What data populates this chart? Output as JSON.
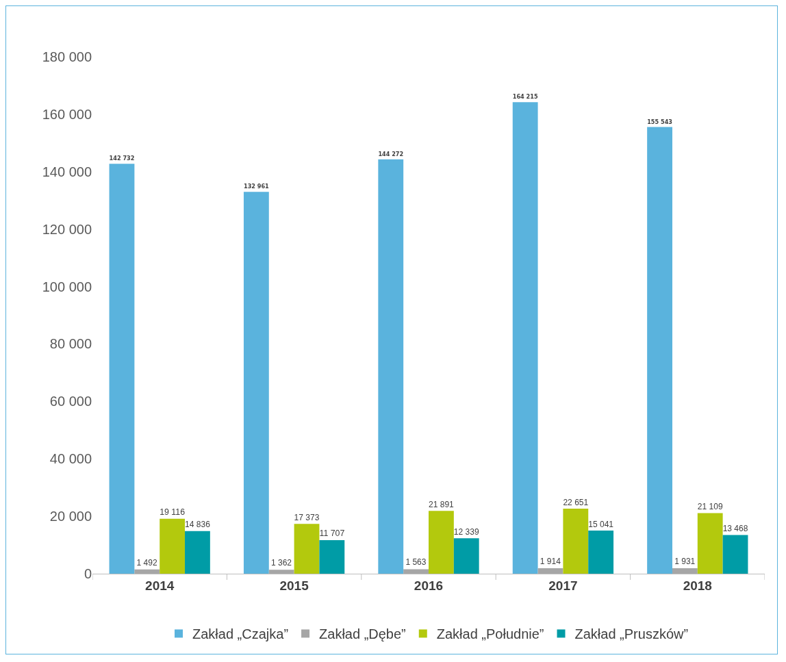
{
  "chart_data": {
    "type": "bar",
    "categories": [
      "2014",
      "2015",
      "2016",
      "2017",
      "2018"
    ],
    "series": [
      {
        "name": "Zakład „Czajka”",
        "color": "#5ab3dd",
        "values": [
          142732,
          132961,
          144272,
          164215,
          155543
        ],
        "value_labels": [
          "142 732",
          "132 961",
          "144 272",
          "164 215",
          "155 543"
        ]
      },
      {
        "name": "Zakład „Dębe”",
        "color": "#a6a6a6",
        "values": [
          1492,
          1362,
          1563,
          1914,
          1931
        ],
        "value_labels": [
          "1 492",
          "1 362",
          "1 563",
          "1 914",
          "1 931"
        ]
      },
      {
        "name": "Zakład „Południe”",
        "color": "#b3c90d",
        "values": [
          19116,
          17373,
          21891,
          22651,
          21109
        ],
        "value_labels": [
          "19 116",
          "17 373",
          "21 891",
          "22 651",
          "21 109"
        ]
      },
      {
        "name": "Zakład „Pruszków”",
        "color": "#009ca6",
        "values": [
          14836,
          11707,
          12339,
          15041,
          13468
        ],
        "value_labels": [
          "14 836",
          "11 707",
          "12 339",
          "15 041",
          "13 468"
        ]
      }
    ],
    "ylim": [
      0,
      180000
    ],
    "yticks": [
      {
        "value": 0,
        "label": "0"
      },
      {
        "value": 20000,
        "label": "20 000"
      },
      {
        "value": 40000,
        "label": "40 000"
      },
      {
        "value": 60000,
        "label": "60 000"
      },
      {
        "value": 80000,
        "label": "80 000"
      },
      {
        "value": 100000,
        "label": "100 000"
      },
      {
        "value": 120000,
        "label": "120 000"
      },
      {
        "value": 140000,
        "label": "140 000"
      },
      {
        "value": 160000,
        "label": "160 000"
      },
      {
        "value": 180000,
        "label": "180 000"
      }
    ],
    "grid": false,
    "legend": "bottom"
  }
}
